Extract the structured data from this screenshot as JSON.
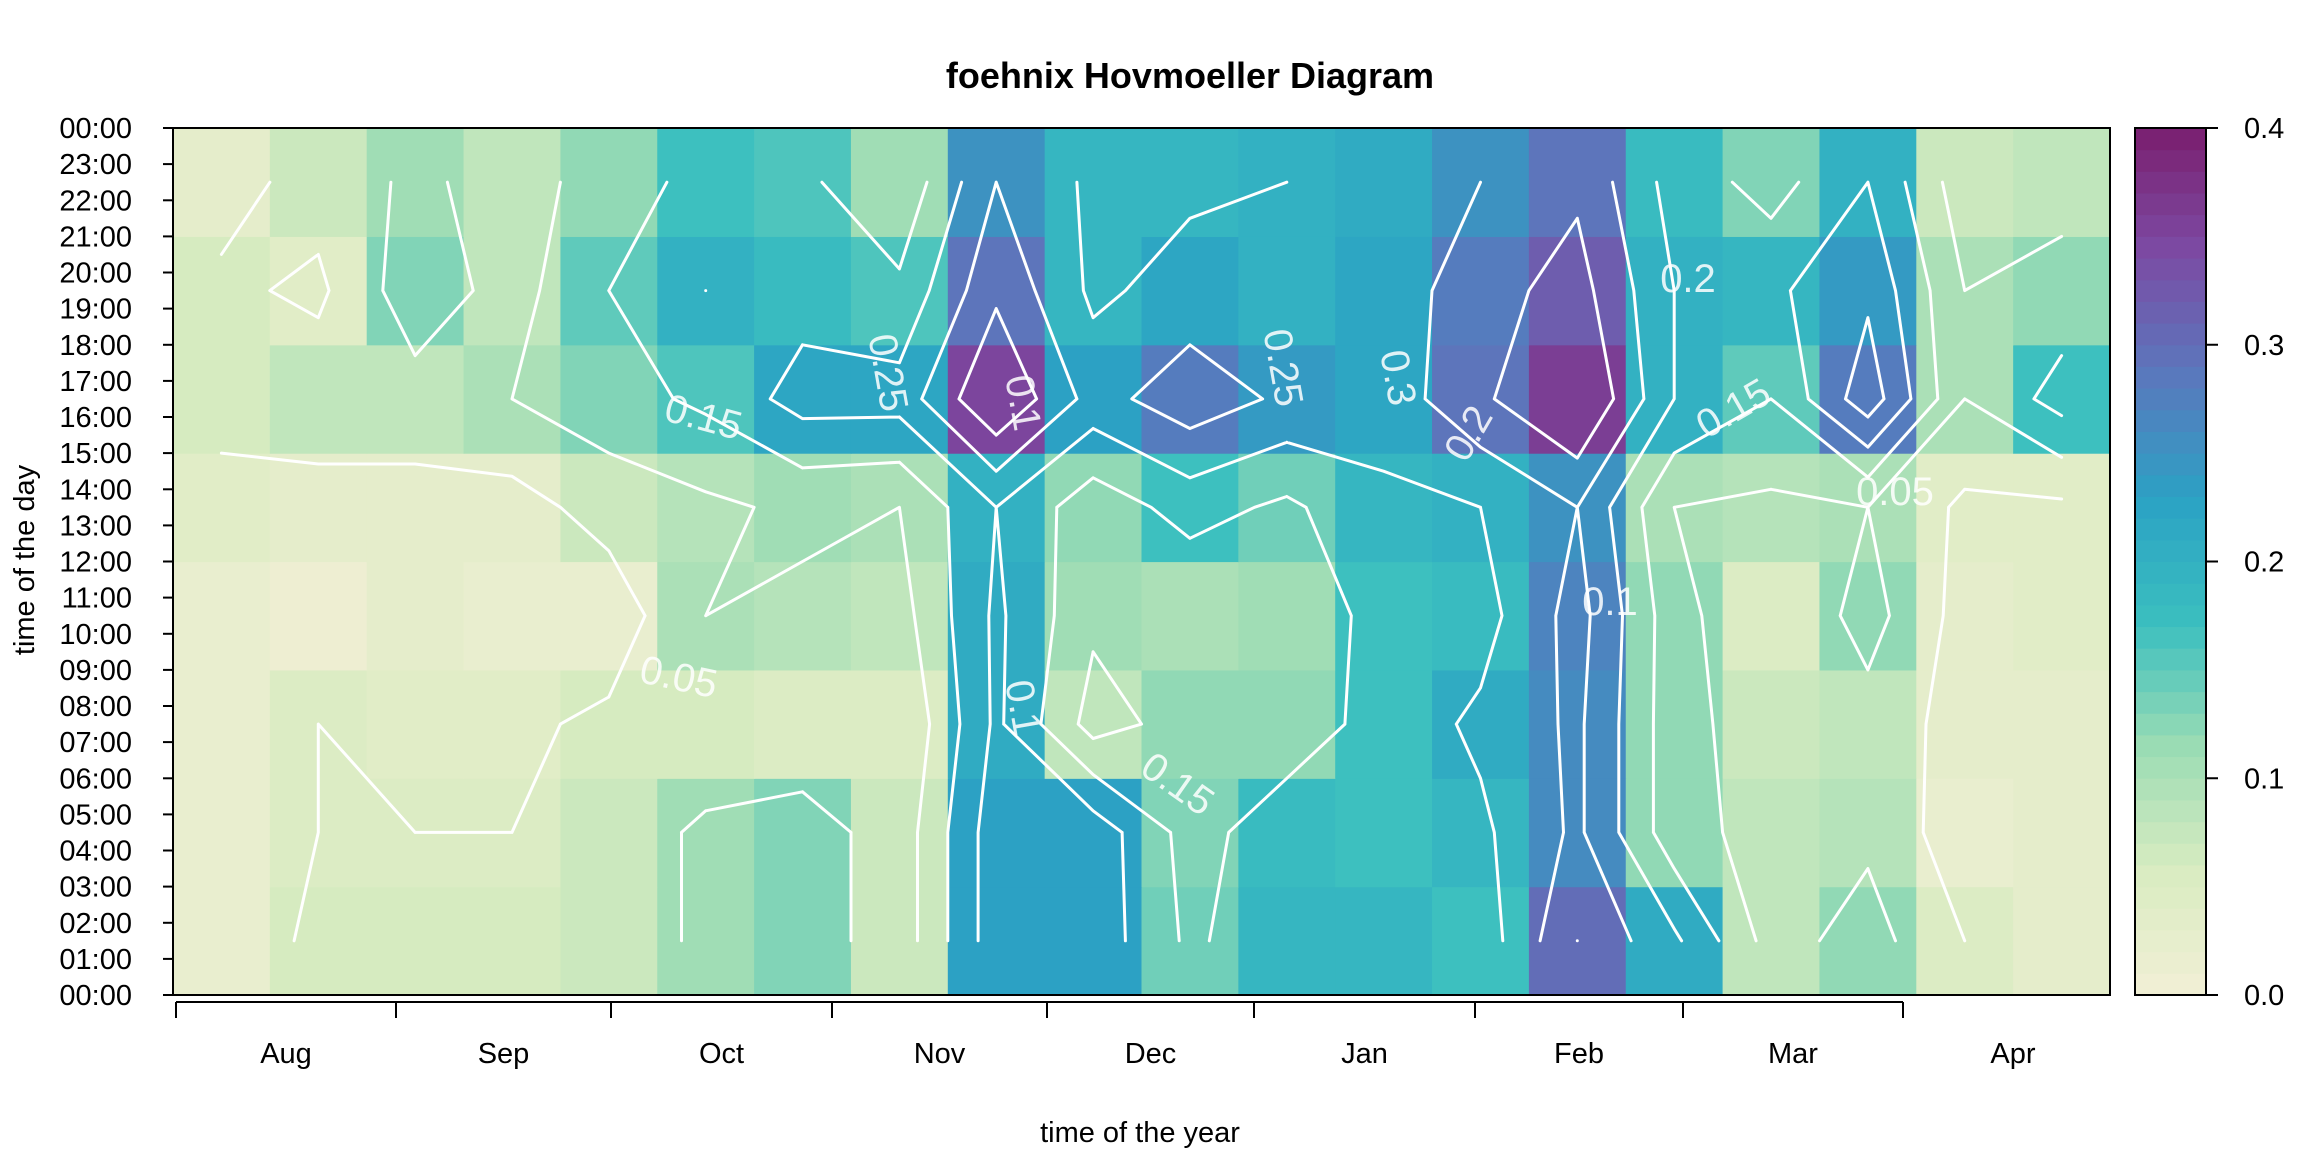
{
  "chart_data": {
    "type": "heatmap",
    "title": "foehnix Hovmoeller Diagram",
    "xlabel": "time of the year",
    "ylabel": "time of the day",
    "x_tick_labels": [
      "Aug",
      "Sep",
      "Oct",
      "Nov",
      "Dec",
      "Jan",
      "Feb",
      "Mar",
      "Apr"
    ],
    "y_tick_labels": [
      "00:00",
      "01:00",
      "02:00",
      "03:00",
      "04:00",
      "05:00",
      "06:00",
      "07:00",
      "08:00",
      "09:00",
      "10:00",
      "11:00",
      "12:00",
      "13:00",
      "14:00",
      "15:00",
      "16:00",
      "17:00",
      "18:00",
      "19:00",
      "20:00",
      "21:00",
      "22:00",
      "23:00",
      "00:00"
    ],
    "colorbar": {
      "range": [
        0.0,
        0.4
      ],
      "tick_labels": [
        "0.0",
        "0.1",
        "0.2",
        "0.3",
        "0.4"
      ]
    },
    "color_stops": [
      "#f2efd6",
      "#d9ecc1",
      "#9bdcb4",
      "#3bbfbf",
      "#2ba2c4",
      "#5a78bd",
      "#7c4ba4",
      "#7a1e6e"
    ],
    "contour_line_color": "#ffffff",
    "contour_labels": [
      "0.05",
      "0.05",
      "0.1",
      "0.1",
      "0.1",
      "0.15",
      "0.15",
      "0.15",
      "0.2",
      "0.2",
      "0.25",
      "0.25",
      "0.3"
    ],
    "columns": 20,
    "rows": 8,
    "rows_hours": [
      "00-03",
      "03-06",
      "06-09",
      "09-12",
      "12-15",
      "15-18",
      "18-21",
      "21-24"
    ],
    "values": [
      [
        0.02,
        0.06,
        0.06,
        0.06,
        0.07,
        0.11,
        0.13,
        0.07,
        0.23,
        0.23,
        0.14,
        0.19,
        0.19,
        0.17,
        0.3,
        0.21,
        0.08,
        0.12,
        0.05,
        0.03
      ],
      [
        0.02,
        0.05,
        0.05,
        0.05,
        0.07,
        0.11,
        0.13,
        0.07,
        0.23,
        0.23,
        0.13,
        0.18,
        0.17,
        0.19,
        0.26,
        0.12,
        0.08,
        0.09,
        0.02,
        0.03
      ],
      [
        0.02,
        0.05,
        0.04,
        0.04,
        0.06,
        0.06,
        0.05,
        0.05,
        0.21,
        0.08,
        0.12,
        0.12,
        0.17,
        0.21,
        0.26,
        0.12,
        0.07,
        0.08,
        0.03,
        0.03
      ],
      [
        0.02,
        0.01,
        0.03,
        0.02,
        0.02,
        0.1,
        0.09,
        0.08,
        0.21,
        0.11,
        0.1,
        0.11,
        0.17,
        0.18,
        0.27,
        0.12,
        0.05,
        0.12,
        0.03,
        0.04
      ],
      [
        0.04,
        0.03,
        0.03,
        0.03,
        0.07,
        0.09,
        0.11,
        0.1,
        0.2,
        0.12,
        0.17,
        0.14,
        0.19,
        0.2,
        0.25,
        0.1,
        0.09,
        0.1,
        0.04,
        0.04
      ],
      [
        0.06,
        0.08,
        0.08,
        0.1,
        0.13,
        0.16,
        0.22,
        0.22,
        0.35,
        0.23,
        0.28,
        0.24,
        0.22,
        0.29,
        0.36,
        0.2,
        0.15,
        0.28,
        0.1,
        0.17
      ],
      [
        0.06,
        0.04,
        0.13,
        0.08,
        0.15,
        0.2,
        0.18,
        0.16,
        0.29,
        0.19,
        0.22,
        0.2,
        0.22,
        0.28,
        0.32,
        0.2,
        0.19,
        0.24,
        0.1,
        0.12
      ],
      [
        0.03,
        0.07,
        0.11,
        0.08,
        0.12,
        0.17,
        0.16,
        0.11,
        0.25,
        0.19,
        0.19,
        0.2,
        0.21,
        0.25,
        0.29,
        0.18,
        0.13,
        0.2,
        0.07,
        0.08
      ]
    ]
  }
}
